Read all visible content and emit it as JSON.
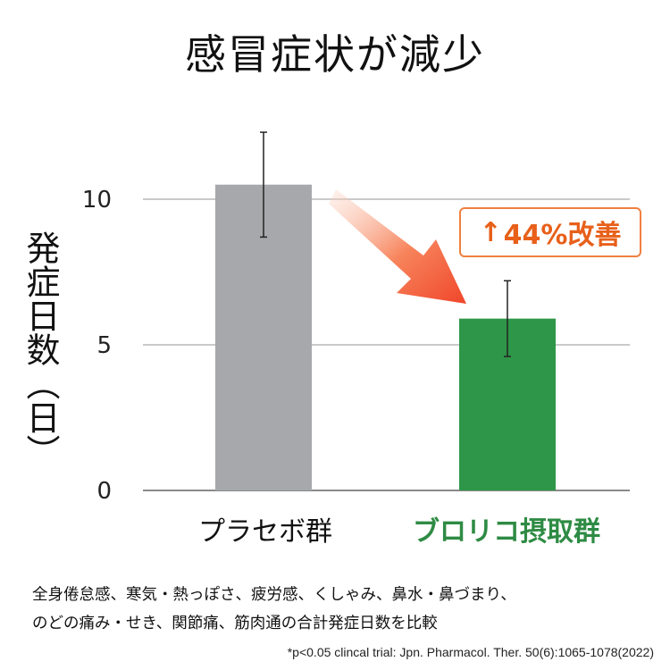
{
  "title": "感冒症状が減少",
  "callout": {
    "arrow": "↑",
    "text": "44%改善"
  },
  "footnote_lines": [
    "全身倦怠感、寒気・熱っぽさ、疲労感、くしゃみ、鼻水・鼻づまり、",
    "のどの痛み・せき、関節痛、筋肉通の合計発症日数を比較"
  ],
  "citation": "*p<0.05 clincal trial: Jpn. Pharmacol. Ther. 50(6):1065-1078(2022)",
  "colors": {
    "placebo": "#a6a8ab",
    "broccoli": "#2e9648",
    "accent": "#f06a3a",
    "callout_text": "#e8601a"
  },
  "chart_data": {
    "type": "bar",
    "title": "感冒症状が減少",
    "ylabel": "発症日数（日）",
    "xlabel": "",
    "categories": [
      "プラセボ群",
      "ブロリコ摂取群"
    ],
    "values": [
      10.5,
      5.9
    ],
    "error": [
      1.8,
      1.3
    ],
    "ylim": [
      0,
      10
    ],
    "yticks": [
      0,
      5,
      10
    ],
    "grid": true
  }
}
